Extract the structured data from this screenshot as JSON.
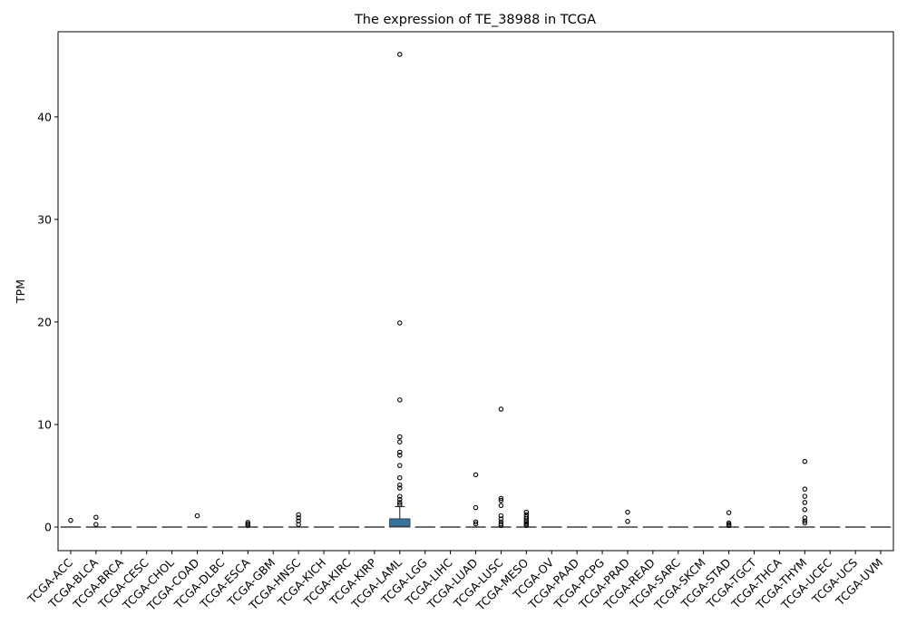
{
  "chart_data": {
    "type": "box",
    "title": "The expression of TE_38988 in TCGA",
    "xlabel": "",
    "ylabel": "TPM",
    "ylim": [
      -2.3,
      48.3
    ],
    "yticks": [
      0,
      10,
      20,
      30,
      40
    ],
    "grid": false,
    "box_color": "#3274a1",
    "categories": [
      "TCGA-ACC",
      "TCGA-BLCA",
      "TCGA-BRCA",
      "TCGA-CESC",
      "TCGA-CHOL",
      "TCGA-COAD",
      "TCGA-DLBC",
      "TCGA-ESCA",
      "TCGA-GBM",
      "TCGA-HNSC",
      "TCGA-KICH",
      "TCGA-KIRC",
      "TCGA-KIRP",
      "TCGA-LAML",
      "TCGA-LGG",
      "TCGA-LIHC",
      "TCGA-LUAD",
      "TCGA-LUSC",
      "TCGA-MESO",
      "TCGA-OV",
      "TCGA-PAAD",
      "TCGA-PCPG",
      "TCGA-PRAD",
      "TCGA-READ",
      "TCGA-SARC",
      "TCGA-SKCM",
      "TCGA-STAD",
      "TCGA-TGCT",
      "TCGA-THCA",
      "TCGA-THYM",
      "TCGA-UCEC",
      "TCGA-UCS",
      "TCGA-UVM"
    ],
    "boxes": [
      {
        "q1": 0,
        "median": 0,
        "q3": 0,
        "whisker_low": 0,
        "whisker_high": 0,
        "outliers": [
          0.65
        ]
      },
      {
        "q1": 0,
        "median": 0,
        "q3": 0,
        "whisker_low": 0,
        "whisker_high": 0,
        "outliers": [
          0.95,
          0.25
        ]
      },
      {
        "q1": 0,
        "median": 0,
        "q3": 0,
        "whisker_low": 0,
        "whisker_high": 0,
        "outliers": []
      },
      {
        "q1": 0,
        "median": 0,
        "q3": 0,
        "whisker_low": 0,
        "whisker_high": 0,
        "outliers": []
      },
      {
        "q1": 0,
        "median": 0,
        "q3": 0,
        "whisker_low": 0,
        "whisker_high": 0,
        "outliers": []
      },
      {
        "q1": 0,
        "median": 0,
        "q3": 0,
        "whisker_low": 0,
        "whisker_high": 0,
        "outliers": [
          1.1
        ]
      },
      {
        "q1": 0,
        "median": 0,
        "q3": 0,
        "whisker_low": 0,
        "whisker_high": 0,
        "outliers": []
      },
      {
        "q1": 0,
        "median": 0,
        "q3": 0,
        "whisker_low": 0,
        "whisker_high": 0,
        "outliers": [
          0.45,
          0.3,
          0.15
        ]
      },
      {
        "q1": 0,
        "median": 0,
        "q3": 0,
        "whisker_low": 0,
        "whisker_high": 0,
        "outliers": []
      },
      {
        "q1": 0,
        "median": 0,
        "q3": 0,
        "whisker_low": 0,
        "whisker_high": 0,
        "outliers": [
          1.2,
          0.9,
          0.6,
          0.25
        ]
      },
      {
        "q1": 0,
        "median": 0,
        "q3": 0,
        "whisker_low": 0,
        "whisker_high": 0,
        "outliers": []
      },
      {
        "q1": 0,
        "median": 0,
        "q3": 0,
        "whisker_low": 0,
        "whisker_high": 0,
        "outliers": []
      },
      {
        "q1": 0,
        "median": 0,
        "q3": 0,
        "whisker_low": 0,
        "whisker_high": 0,
        "outliers": []
      },
      {
        "q1": 0,
        "median": 0.05,
        "q3": 0.8,
        "whisker_low": 0,
        "whisker_high": 2.0,
        "outliers": [
          46.1,
          19.9,
          12.4,
          8.8,
          8.3,
          7.3,
          7.0,
          6.0,
          4.8,
          4.1,
          3.8,
          3.0,
          2.7,
          2.4,
          2.2
        ]
      },
      {
        "q1": 0,
        "median": 0,
        "q3": 0,
        "whisker_low": 0,
        "whisker_high": 0,
        "outliers": []
      },
      {
        "q1": 0,
        "median": 0,
        "q3": 0,
        "whisker_low": 0,
        "whisker_high": 0,
        "outliers": []
      },
      {
        "q1": 0,
        "median": 0,
        "q3": 0,
        "whisker_low": 0,
        "whisker_high": 0,
        "outliers": [
          5.1,
          1.9,
          0.5,
          0.3
        ]
      },
      {
        "q1": 0,
        "median": 0,
        "q3": 0,
        "whisker_low": 0,
        "whisker_high": 0,
        "outliers": [
          11.5,
          2.8,
          2.6,
          2.1,
          1.1,
          0.8,
          0.5,
          0.3,
          0.15
        ]
      },
      {
        "q1": 0,
        "median": 0,
        "q3": 0,
        "whisker_low": 0,
        "whisker_high": 0,
        "outliers": [
          1.45,
          1.2,
          1.0,
          0.8,
          0.6,
          0.45,
          0.3,
          0.15
        ]
      },
      {
        "q1": 0,
        "median": 0,
        "q3": 0,
        "whisker_low": 0,
        "whisker_high": 0,
        "outliers": []
      },
      {
        "q1": 0,
        "median": 0,
        "q3": 0,
        "whisker_low": 0,
        "whisker_high": 0,
        "outliers": []
      },
      {
        "q1": 0,
        "median": 0,
        "q3": 0,
        "whisker_low": 0,
        "whisker_high": 0,
        "outliers": []
      },
      {
        "q1": 0,
        "median": 0,
        "q3": 0,
        "whisker_low": 0,
        "whisker_high": 0,
        "outliers": [
          1.45,
          0.55
        ]
      },
      {
        "q1": 0,
        "median": 0,
        "q3": 0,
        "whisker_low": 0,
        "whisker_high": 0,
        "outliers": []
      },
      {
        "q1": 0,
        "median": 0,
        "q3": 0,
        "whisker_low": 0,
        "whisker_high": 0,
        "outliers": []
      },
      {
        "q1": 0,
        "median": 0,
        "q3": 0,
        "whisker_low": 0,
        "whisker_high": 0,
        "outliers": []
      },
      {
        "q1": 0,
        "median": 0,
        "q3": 0,
        "whisker_low": 0,
        "whisker_high": 0,
        "outliers": [
          1.4,
          0.4,
          0.25,
          0.15
        ]
      },
      {
        "q1": 0,
        "median": 0,
        "q3": 0,
        "whisker_low": 0,
        "whisker_high": 0,
        "outliers": []
      },
      {
        "q1": 0,
        "median": 0,
        "q3": 0,
        "whisker_low": 0,
        "whisker_high": 0,
        "outliers": []
      },
      {
        "q1": 0,
        "median": 0,
        "q3": 0,
        "whisker_low": 0,
        "whisker_high": 0,
        "outliers": [
          6.4,
          3.7,
          3.0,
          2.4,
          1.7,
          0.9,
          0.6,
          0.4
        ]
      },
      {
        "q1": 0,
        "median": 0,
        "q3": 0,
        "whisker_low": 0,
        "whisker_high": 0,
        "outliers": []
      },
      {
        "q1": 0,
        "median": 0,
        "q3": 0,
        "whisker_low": 0,
        "whisker_high": 0,
        "outliers": []
      },
      {
        "q1": 0,
        "median": 0,
        "q3": 0,
        "whisker_low": 0,
        "whisker_high": 0,
        "outliers": []
      }
    ]
  }
}
